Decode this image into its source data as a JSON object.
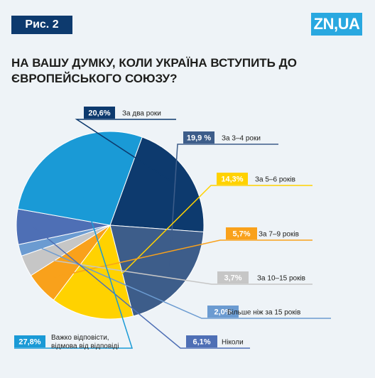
{
  "header": {
    "figure_label": "Рис. 2",
    "logo": "ZN,UA",
    "title_line1": "На вашу думку, коли Україна вступить до",
    "title_line2": "Європейського союзу?"
  },
  "chart_data": {
    "type": "pie",
    "title": "На вашу думку, коли Україна вступить до Європейського союзу?",
    "start_angle_deg": -70,
    "slices": [
      {
        "label": "За два роки",
        "value": 20.6,
        "value_label": "20,6%",
        "color": "#3d5d8a"
      },
      {
        "label": "За 3–4 роки",
        "value": 19.9,
        "value_label": "19,9 %",
        "color": "#3d5d8a"
      },
      {
        "label": "За 5–6 років",
        "value": 14.3,
        "value_label": "14,3%",
        "color": "#ffd200"
      },
      {
        "label": "За 7–9 років",
        "value": 5.7,
        "value_label": "5,7%",
        "color": "#f9a11b"
      },
      {
        "label": "За 10–15 років",
        "value": 3.7,
        "value_label": "3,7%",
        "color": "#c6c6c6"
      },
      {
        "label": "Більше ніж за 15 років",
        "value": 2.0,
        "value_label": "2,0%",
        "color": "#6b9bd1"
      },
      {
        "label": "Ніколи",
        "value": 6.1,
        "value_label": "6,1%",
        "color": "#4e6fb5"
      },
      {
        "label": "Важко відповісти, відмова від відповіді",
        "value": 27.8,
        "value_label": "27,8%",
        "color": "#1a9ad6"
      }
    ]
  }
}
